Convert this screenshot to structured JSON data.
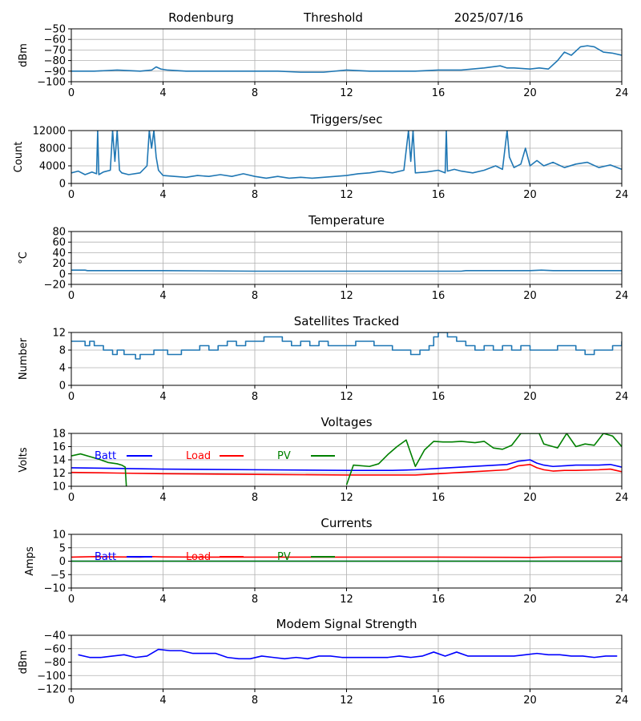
{
  "header": {
    "site": "Rodenburg",
    "mode": "Threshold",
    "date": "2025/07/16"
  },
  "chart_data": [
    {
      "type": "line",
      "title": "",
      "xlabel": "",
      "ylabel": "dBm",
      "xlim": [
        0,
        24
      ],
      "ylim": [
        -100,
        -50
      ],
      "xticks": [
        0,
        4,
        8,
        12,
        16,
        20,
        24
      ],
      "yticks": [
        -100,
        -90,
        -80,
        -70,
        -60,
        -50
      ],
      "grid": true,
      "series": [
        {
          "color": "#1f77b4",
          "x": [
            0,
            1,
            2,
            3,
            3.5,
            3.7,
            3.9,
            4.2,
            5,
            6,
            7,
            8,
            9,
            10,
            11,
            12,
            13,
            14,
            15,
            16,
            17,
            18,
            18.7,
            19,
            19.3,
            20,
            20.4,
            20.8,
            21.2,
            21.5,
            21.8,
            22.2,
            22.5,
            22.8,
            23.2,
            23.6,
            24
          ],
          "y": [
            -90,
            -90,
            -89,
            -90,
            -89,
            -86,
            -88,
            -89,
            -90,
            -90,
            -90,
            -90,
            -90,
            -91,
            -91,
            -89,
            -90,
            -90,
            -90,
            -89,
            -89,
            -87,
            -85,
            -87,
            -87,
            -88,
            -87,
            -88,
            -80,
            -72,
            -75,
            -67,
            -66,
            -67,
            -72,
            -73,
            -75
          ]
        }
      ]
    },
    {
      "type": "line",
      "title": "Triggers/sec",
      "xlabel": "",
      "ylabel": "Count",
      "xlim": [
        0,
        24
      ],
      "ylim": [
        0,
        12000
      ],
      "xticks": [
        0,
        4,
        8,
        12,
        16,
        20,
        24
      ],
      "yticks": [
        0,
        4000,
        8000,
        12000
      ],
      "grid": true,
      "series": [
        {
          "color": "#1f77b4",
          "x": [
            0,
            0.3,
            0.6,
            0.9,
            1.1,
            1.15,
            1.2,
            1.4,
            1.7,
            1.8,
            1.9,
            2.0,
            2.1,
            2.2,
            2.5,
            3.0,
            3.3,
            3.4,
            3.5,
            3.6,
            3.7,
            3.8,
            4.0,
            4.5,
            5,
            5.5,
            6,
            6.5,
            7,
            7.5,
            8,
            8.5,
            9,
            9.5,
            10,
            10.5,
            11,
            11.5,
            12,
            12.5,
            13,
            13.5,
            14,
            14.5,
            14.7,
            14.8,
            14.9,
            15.0,
            15.5,
            16,
            16.3,
            16.35,
            16.4,
            16.7,
            17,
            17.5,
            18,
            18.5,
            18.8,
            19.0,
            19.1,
            19.3,
            19.6,
            19.8,
            20,
            20.3,
            20.6,
            21,
            21.5,
            22,
            22.5,
            23,
            23.5,
            24
          ],
          "y": [
            2400,
            2800,
            2000,
            2600,
            2200,
            12000,
            2000,
            2600,
            3000,
            12000,
            5000,
            12000,
            3000,
            2400,
            2000,
            2400,
            4000,
            12000,
            8000,
            12000,
            6000,
            3000,
            1800,
            1600,
            1400,
            1800,
            1600,
            2000,
            1600,
            2200,
            1600,
            1200,
            1600,
            1200,
            1400,
            1200,
            1400,
            1600,
            1800,
            2200,
            2400,
            2800,
            2400,
            3000,
            12000,
            5000,
            12000,
            2400,
            2600,
            3000,
            2400,
            12000,
            2800,
            3200,
            2800,
            2400,
            3000,
            4000,
            3200,
            12000,
            6000,
            3600,
            4400,
            8000,
            4000,
            5200,
            4000,
            4800,
            3600,
            4400,
            4800,
            3600,
            4200,
            3200
          ]
        }
      ]
    },
    {
      "type": "line",
      "title": "Temperature",
      "xlabel": "",
      "ylabel": "°C",
      "xlim": [
        0,
        24
      ],
      "ylim": [
        -20,
        80
      ],
      "xticks": [
        0,
        4,
        8,
        12,
        16,
        20,
        24
      ],
      "yticks": [
        -20,
        0,
        20,
        40,
        60,
        80
      ],
      "grid": true,
      "series": [
        {
          "color": "#1f77b4",
          "x": [
            0,
            0.6,
            0.7,
            4,
            8,
            12,
            16,
            17,
            17.2,
            18,
            19,
            20,
            20.5,
            21,
            22,
            24
          ],
          "y": [
            7,
            7,
            6,
            6,
            5,
            5,
            5,
            5,
            6,
            6,
            6,
            6,
            7,
            6,
            6,
            6
          ]
        }
      ]
    },
    {
      "type": "line",
      "title": "Satellites Tracked",
      "xlabel": "",
      "ylabel": "Number",
      "xlim": [
        0,
        24
      ],
      "ylim": [
        0,
        12
      ],
      "xticks": [
        0,
        4,
        8,
        12,
        16,
        20,
        24
      ],
      "yticks": [
        0,
        4,
        8,
        12
      ],
      "grid": true,
      "step": true,
      "series": [
        {
          "color": "#1f77b4",
          "x": [
            0,
            0.4,
            0.6,
            0.8,
            1.0,
            1.4,
            1.6,
            1.8,
            2.0,
            2.3,
            2.6,
            2.8,
            3.0,
            3.4,
            3.6,
            4.0,
            4.2,
            4.8,
            5.2,
            5.6,
            6.0,
            6.4,
            6.8,
            7.2,
            7.6,
            8.0,
            8.4,
            8.8,
            9.2,
            9.6,
            10.0,
            10.4,
            10.8,
            11.2,
            11.6,
            12.0,
            12.4,
            12.8,
            13.2,
            13.6,
            14.0,
            14.4,
            14.8,
            15.2,
            15.6,
            15.8,
            16.0,
            16.4,
            16.8,
            17.2,
            17.6,
            18.0,
            18.4,
            18.8,
            19.2,
            19.6,
            20.0,
            20.4,
            20.8,
            21.2,
            21.6,
            22.0,
            22.4,
            22.8,
            23.2,
            23.6,
            24
          ],
          "y": [
            10,
            10,
            9,
            10,
            9,
            8,
            8,
            7,
            8,
            7,
            7,
            6,
            7,
            7,
            8,
            8,
            7,
            8,
            8,
            9,
            8,
            9,
            10,
            9,
            10,
            10,
            11,
            11,
            10,
            9,
            10,
            9,
            10,
            9,
            9,
            9,
            10,
            10,
            9,
            9,
            8,
            8,
            7,
            8,
            9,
            11,
            12,
            11,
            10,
            9,
            8,
            9,
            8,
            9,
            8,
            9,
            8,
            8,
            8,
            9,
            9,
            8,
            7,
            8,
            8,
            9,
            10
          ]
        }
      ]
    },
    {
      "type": "line",
      "title": "Voltages",
      "xlabel": "",
      "ylabel": "Volts",
      "xlim": [
        0,
        24
      ],
      "ylim": [
        10,
        18
      ],
      "xticks": [
        0,
        4,
        8,
        12,
        16,
        20,
        24
      ],
      "yticks": [
        10,
        12,
        14,
        16,
        18
      ],
      "grid": true,
      "legend": "top-left, inline",
      "series": [
        {
          "name": "Batt",
          "color": "#0000ff",
          "x": [
            0,
            2,
            4,
            8,
            12,
            14,
            15,
            16,
            17,
            18,
            19,
            19.5,
            20,
            20.3,
            20.6,
            21,
            21.5,
            22,
            23,
            23.5,
            24
          ],
          "y": [
            12.8,
            12.7,
            12.6,
            12.5,
            12.4,
            12.4,
            12.5,
            12.7,
            12.9,
            13.1,
            13.3,
            13.8,
            14.0,
            13.5,
            13.2,
            13.0,
            13.1,
            13.2,
            13.2,
            13.3,
            12.9
          ]
        },
        {
          "name": "Load",
          "color": "#ff0000",
          "x": [
            0,
            2,
            4,
            8,
            12,
            14,
            15,
            16,
            17,
            18,
            19,
            19.5,
            20,
            20.3,
            20.6,
            21,
            21.5,
            22,
            23,
            23.5,
            24
          ],
          "y": [
            12.1,
            12.0,
            11.9,
            11.8,
            11.7,
            11.7,
            11.7,
            11.9,
            12.1,
            12.3,
            12.5,
            13.1,
            13.3,
            12.8,
            12.5,
            12.3,
            12.4,
            12.4,
            12.5,
            12.6,
            12.2
          ]
        },
        {
          "name": "PV",
          "color": "#008000",
          "x": [
            0,
            0.4,
            0.8,
            1.2,
            1.6,
            2.0,
            2.2,
            2.35,
            2.4,
            null,
            12.0,
            12.3,
            13,
            13.4,
            13.8,
            14.2,
            14.6,
            15.0,
            15.4,
            15.8,
            16.2,
            16.6,
            17,
            17.6,
            18,
            18.4,
            18.8,
            19.2,
            19.6,
            20.0,
            20.4,
            20.6,
            20.8,
            21.2,
            21.6,
            22,
            22.4,
            22.8,
            23.2,
            23.6,
            24
          ],
          "y": [
            14.6,
            14.9,
            14.5,
            14.1,
            13.6,
            13.4,
            13.2,
            12.9,
            10.0,
            null,
            10.2,
            13.2,
            13.0,
            13.4,
            14.8,
            16.0,
            17.0,
            13.0,
            15.5,
            16.8,
            16.7,
            16.7,
            16.8,
            16.6,
            16.8,
            15.8,
            15.6,
            16.2,
            18.0,
            18.0,
            18.0,
            16.4,
            16.2,
            15.8,
            18.0,
            16.0,
            16.4,
            16.2,
            18.0,
            17.6,
            16.0
          ]
        }
      ]
    },
    {
      "type": "line",
      "title": "Currents",
      "xlabel": "",
      "ylabel": "Amps",
      "xlim": [
        0,
        24
      ],
      "ylim": [
        -10,
        10
      ],
      "xticks": [
        0,
        4,
        8,
        12,
        16,
        20,
        24
      ],
      "yticks": [
        -10,
        -5,
        0,
        5,
        10
      ],
      "grid": true,
      "legend": "top-left, inline",
      "series": [
        {
          "name": "Batt",
          "color": "#0000ff",
          "x": [
            0,
            24
          ],
          "y": [
            0,
            0
          ]
        },
        {
          "name": "Load",
          "color": "#ff0000",
          "x": [
            0,
            1,
            2,
            3,
            3.5,
            4,
            6,
            8,
            12,
            16,
            20,
            21,
            24
          ],
          "y": [
            1.5,
            1.7,
            1.6,
            1.5,
            1.7,
            1.6,
            1.5,
            1.5,
            1.5,
            1.5,
            1.4,
            1.5,
            1.5
          ]
        },
        {
          "name": "PV",
          "color": "#008000",
          "x": [
            0,
            24
          ],
          "y": [
            0,
            0
          ]
        }
      ]
    },
    {
      "type": "line",
      "title": "Modem Signal Strength",
      "xlabel": "",
      "ylabel": "dBm",
      "xlim": [
        0,
        24
      ],
      "ylim": [
        -120,
        -40
      ],
      "xticks": [
        0,
        4,
        8,
        12,
        16,
        20,
        24
      ],
      "yticks": [
        -120,
        -100,
        -80,
        -60,
        -40
      ],
      "grid": true,
      "series": [
        {
          "color": "#0000ff",
          "x": [
            0.3,
            0.8,
            1.3,
            1.8,
            2.3,
            2.8,
            3.3,
            3.8,
            4.3,
            4.8,
            5.3,
            5.8,
            6.3,
            6.8,
            7.3,
            7.8,
            8.3,
            8.8,
            9.3,
            9.8,
            10.3,
            10.8,
            11.3,
            11.8,
            12.3,
            12.8,
            13.3,
            13.8,
            14.3,
            14.8,
            15.3,
            15.8,
            16.3,
            16.8,
            17.3,
            17.8,
            18.3,
            18.8,
            19.3,
            19.8,
            20.3,
            20.8,
            21.3,
            21.8,
            22.3,
            22.8,
            23.3,
            23.8
          ],
          "y": [
            -69,
            -73,
            -73,
            -71,
            -69,
            -73,
            -71,
            -61,
            -63,
            -63,
            -67,
            -67,
            -67,
            -73,
            -75,
            -75,
            -71,
            -73,
            -75,
            -73,
            -75,
            -71,
            -71,
            -73,
            -73,
            -73,
            -73,
            -73,
            -71,
            -73,
            -71,
            -65,
            -71,
            -65,
            -71,
            -71,
            -71,
            -71,
            -71,
            -69,
            -67,
            -69,
            -69,
            -71,
            -71,
            -73,
            -71,
            -71
          ]
        }
      ]
    }
  ]
}
